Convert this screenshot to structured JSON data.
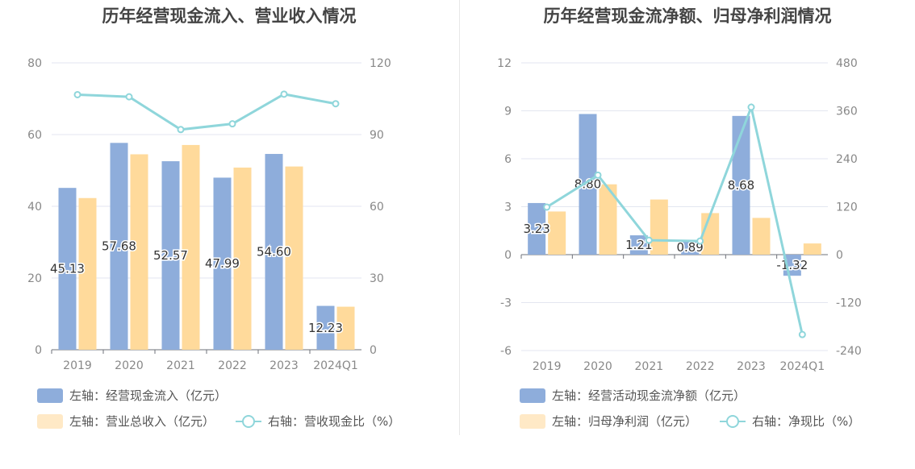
{
  "chart_data": [
    {
      "type": "bar",
      "title": "历年经营现金流入、营业收入情况",
      "categories": [
        "2019",
        "2020",
        "2021",
        "2022",
        "2023",
        "2024Q1"
      ],
      "left_axis": {
        "ticks": [
          "0",
          "20",
          "40",
          "60",
          "80"
        ],
        "range": [
          0,
          80
        ]
      },
      "right_axis": {
        "ticks": [
          "0",
          "30",
          "60",
          "90",
          "120"
        ],
        "range": [
          0,
          120
        ]
      },
      "series": [
        {
          "name": "左轴：经营现金流入（亿元）",
          "axis": "left",
          "kind": "bar",
          "color": "#8eaddb",
          "values": [
            45.13,
            57.68,
            52.57,
            47.99,
            54.6,
            12.23
          ],
          "labels": [
            "45.13",
            "57.68",
            "52.57",
            "47.99",
            "54.60",
            "12.23"
          ]
        },
        {
          "name": "左轴：营业总收入（亿元）",
          "axis": "left",
          "kind": "bar",
          "color": "#ffda9b",
          "legend_color": "#ffe9c6",
          "values": [
            42.3,
            54.5,
            57.1,
            50.8,
            51.1,
            12.0
          ]
        },
        {
          "name": "右轴：营收现金比（%）",
          "axis": "right",
          "kind": "line",
          "color": "#8fd6db",
          "values": [
            106.7,
            105.8,
            92.1,
            94.5,
            106.9,
            102.9
          ]
        }
      ],
      "legend": "bottom"
    },
    {
      "type": "bar",
      "title": "历年经营现金流净额、归母净利润情况",
      "categories": [
        "2019",
        "2020",
        "2021",
        "2022",
        "2023",
        "2024Q1"
      ],
      "left_axis": {
        "ticks": [
          "-6",
          "-3",
          "0",
          "3",
          "6",
          "9",
          "12"
        ],
        "range": [
          -6,
          12
        ]
      },
      "right_axis": {
        "ticks": [
          "-240",
          "-120",
          "0",
          "120",
          "240",
          "360",
          "480"
        ],
        "range": [
          -240,
          480
        ]
      },
      "series": [
        {
          "name": "左轴：经营活动现金流净额（亿元）",
          "axis": "left",
          "kind": "bar",
          "color": "#8eaddb",
          "values": [
            3.23,
            8.8,
            1.21,
            0.89,
            8.68,
            -1.32
          ],
          "labels": [
            "3.23",
            "8.80",
            "1.21",
            "0.89",
            "8.68",
            "-1.32"
          ]
        },
        {
          "name": "左轴：归母净利润（亿元）",
          "axis": "left",
          "kind": "bar",
          "color": "#ffda9b",
          "legend_color": "#ffe9c6",
          "values": [
            2.7,
            4.4,
            3.45,
            2.6,
            2.3,
            0.7
          ]
        },
        {
          "name": "右轴：净现比（%）",
          "axis": "right",
          "kind": "line",
          "color": "#8fd6db",
          "values": [
            119,
            199,
            36,
            34,
            369,
            -200
          ]
        }
      ],
      "legend": "bottom"
    }
  ]
}
